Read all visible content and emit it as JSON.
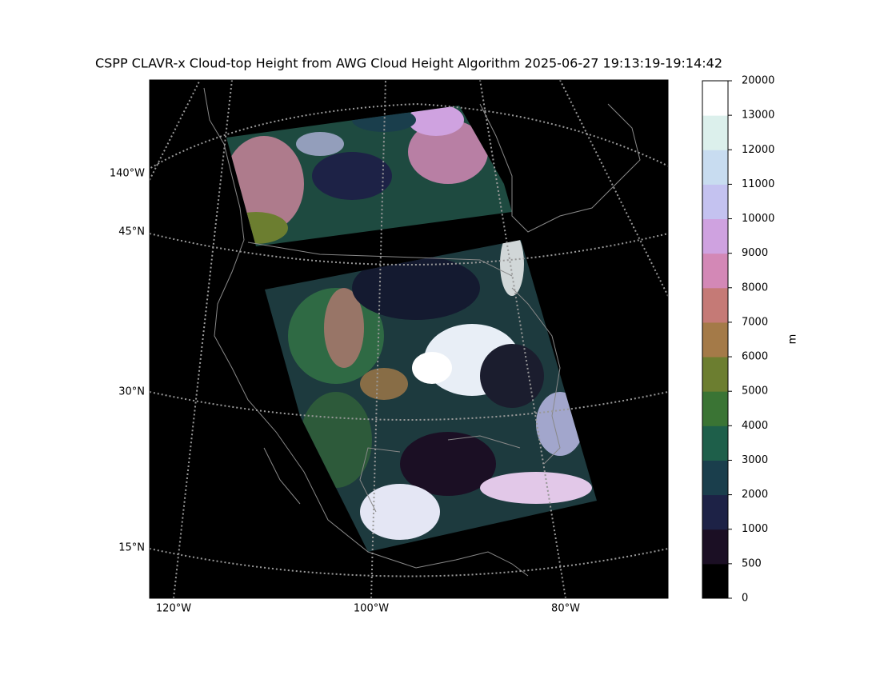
{
  "map": {
    "title": "CSPP CLAVR-x Cloud-top Height from AWG Cloud Height Algorithm 2025-06-27 19:13:19-19:14:42",
    "lat_labels": [
      "140°W",
      "45°N",
      "30°N",
      "15°N"
    ],
    "lon_labels": [
      "120°W",
      "100°W",
      "80°W"
    ],
    "colorbar": {
      "label": "m",
      "ticks": [
        0,
        500,
        1000,
        2000,
        3000,
        4000,
        5000,
        6000,
        7000,
        8000,
        9000,
        10000,
        11000,
        12000,
        13000,
        20000
      ],
      "colors": [
        "#000000",
        "#1b0f24",
        "#1d2246",
        "#1a3e4c",
        "#1e5f4a",
        "#3a7434",
        "#6c7e30",
        "#a47a48",
        "#c57a76",
        "#d388b6",
        "#cfa2e0",
        "#c4c2f0",
        "#c8dcf0",
        "#dcf0ec",
        "#ffffff"
      ]
    }
  }
}
